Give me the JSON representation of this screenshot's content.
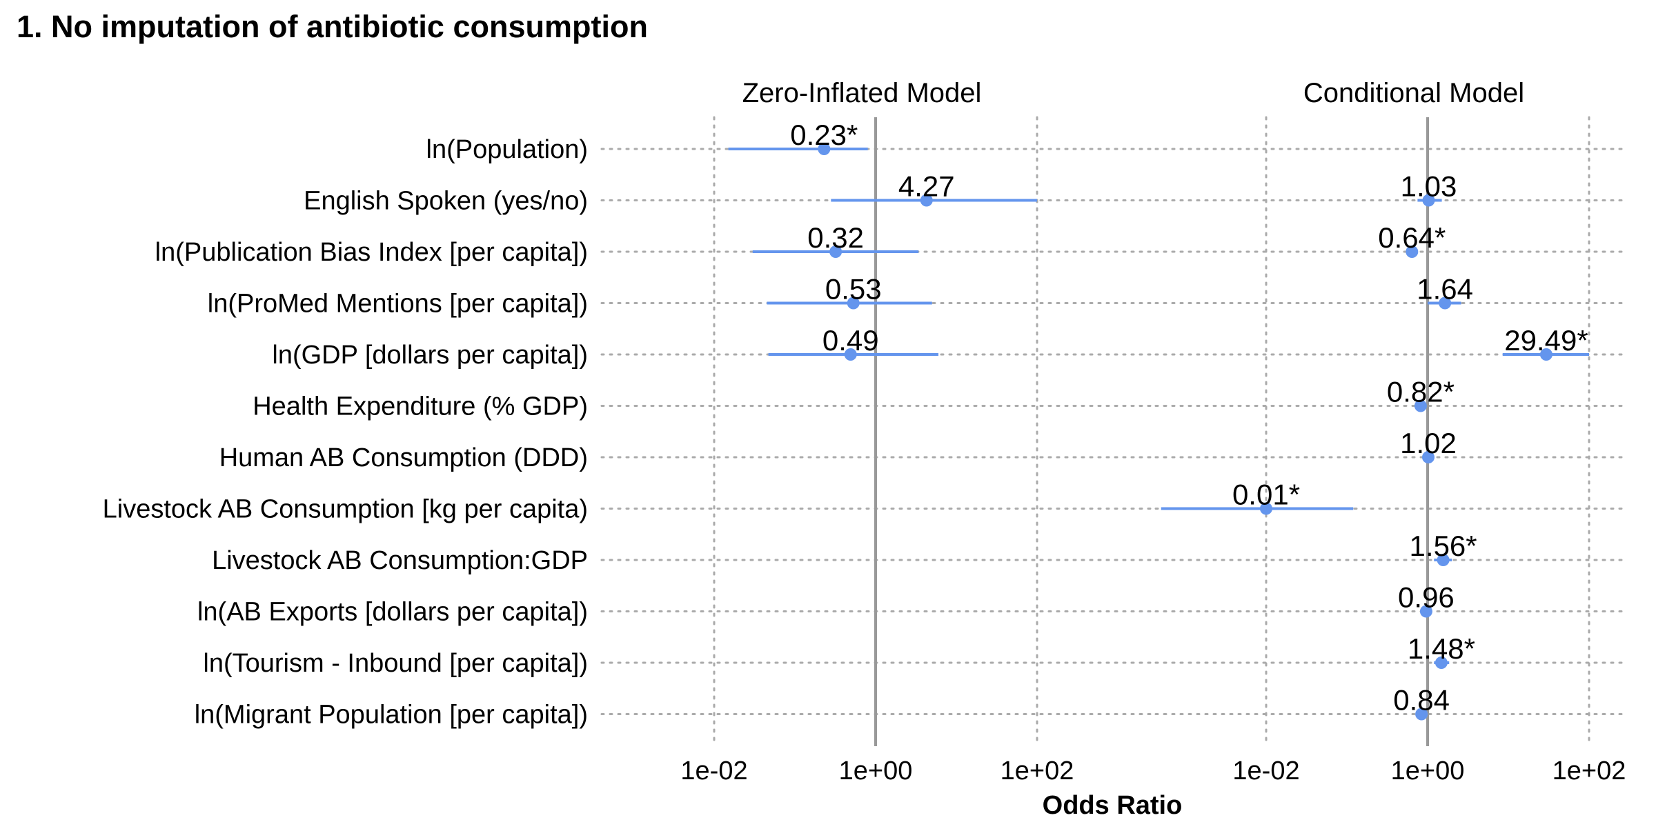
{
  "chart_data": {
    "type": "forest",
    "title": "1. No imputation of antibiotic consumption",
    "xlabel": "Odds Ratio",
    "x_scale": "log10",
    "xlim": [
      0.0001,
      100
    ],
    "x_ticks": [
      0.01,
      1,
      100
    ],
    "x_tick_labels": [
      "1e-02",
      "1e+00",
      "1e+02"
    ],
    "reference_line": 1,
    "grid": true,
    "point_color": "#6495ED",
    "reference_color": "#999999",
    "grid_color": "#aaaaaa",
    "terms": [
      "ln(Population)",
      "English Spoken (yes/no)",
      "ln(Publication Bias Index [per capita])",
      "ln(ProMed Mentions [per capita])",
      "ln(GDP [dollars per capita])",
      "Health Expenditure (% GDP)",
      "Human AB Consumption (DDD)",
      "Livestock AB Consumption [kg per capita)",
      "Livestock AB Consumption:GDP",
      "ln(AB Exports [dollars per capita])",
      "ln(Tourism - Inbound [per capita])",
      "ln(Migrant Population [per capita])"
    ],
    "panels": [
      {
        "title": "Zero-Inflated Model",
        "estimates": [
          {
            "term": "ln(Population)",
            "or": 0.23,
            "lo": 0.015,
            "hi": 0.8,
            "label": "0.23*"
          },
          {
            "term": "English Spoken (yes/no)",
            "or": 4.27,
            "lo": 0.28,
            "hi": 140,
            "label": "4.27"
          },
          {
            "term": "ln(Publication Bias Index [per capita])",
            "or": 0.32,
            "lo": 0.03,
            "hi": 3.4,
            "label": "0.32"
          },
          {
            "term": "ln(ProMed Mentions [per capita])",
            "or": 0.53,
            "lo": 0.045,
            "hi": 5.0,
            "label": "0.53"
          },
          {
            "term": "ln(GDP [dollars per capita])",
            "or": 0.49,
            "lo": 0.047,
            "hi": 6.0,
            "label": "0.49"
          }
        ]
      },
      {
        "title": "Conditional Model",
        "estimates": [
          {
            "term": "ln(Population)",
            "or": null,
            "lo": null,
            "hi": null,
            "label": ""
          },
          {
            "term": "English Spoken (yes/no)",
            "or": 1.03,
            "lo": 0.75,
            "hi": 1.5,
            "label": "1.03"
          },
          {
            "term": "ln(Publication Bias Index [per capita])",
            "or": 0.64,
            "lo": 0.55,
            "hi": 0.75,
            "label": "0.64*"
          },
          {
            "term": "ln(ProMed Mentions [per capita])",
            "or": 1.64,
            "lo": 1.0,
            "hi": 2.6,
            "label": "1.64"
          },
          {
            "term": "ln(GDP [dollars per capita])",
            "or": 29.49,
            "lo": 8.5,
            "hi": 100,
            "label": "29.49*"
          },
          {
            "term": "Health Expenditure (% GDP)",
            "or": 0.82,
            "lo": 0.72,
            "hi": 0.93,
            "label": "0.82*"
          },
          {
            "term": "Human AB Consumption (DDD)",
            "or": 1.02,
            "lo": 0.99,
            "hi": 1.05,
            "label": "1.02"
          },
          {
            "term": "Livestock AB Consumption [kg per capita)",
            "or": 0.01,
            "lo": 0.0005,
            "hi": 0.12,
            "label": "0.01*"
          },
          {
            "term": "Livestock AB Consumption:GDP",
            "or": 1.56,
            "lo": 1.2,
            "hi": 2.0,
            "label": "1.56*"
          },
          {
            "term": "ln(AB Exports [dollars per capita])",
            "or": 0.96,
            "lo": 0.9,
            "hi": 1.03,
            "label": "0.96"
          },
          {
            "term": "ln(Tourism - Inbound [per capita])",
            "or": 1.48,
            "lo": 1.2,
            "hi": 1.85,
            "label": "1.48*"
          },
          {
            "term": "ln(Migrant Population [per capita])",
            "or": 0.84,
            "lo": 0.75,
            "hi": 0.95,
            "label": "0.84"
          }
        ]
      }
    ]
  }
}
